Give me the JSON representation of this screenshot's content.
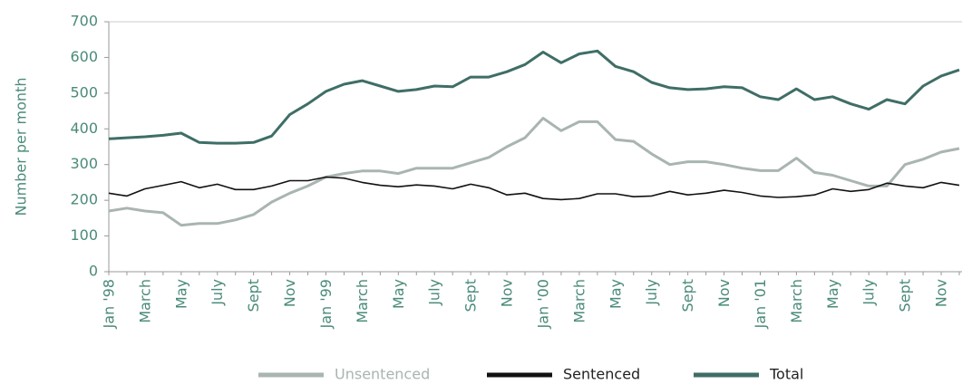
{
  "chart_data": {
    "type": "line",
    "y_label": "Number per month",
    "categories": [
      "Jan '98",
      null,
      "March",
      null,
      "May",
      null,
      "July",
      null,
      "Sept",
      null,
      "Nov",
      null,
      "Jan '99",
      null,
      "March",
      null,
      "May",
      null,
      "July",
      null,
      "Sept",
      null,
      "Nov",
      null,
      "Jan '00",
      null,
      "March",
      null,
      "May",
      null,
      "July",
      null,
      "Sept",
      null,
      "Nov",
      null,
      "Jan '01",
      null,
      "March",
      null,
      "May",
      null,
      "July",
      null,
      "Sept",
      null,
      "Nov",
      null
    ],
    "series": [
      {
        "name": "Unsentenced",
        "color": "#a9b5b0",
        "values": [
          170,
          178,
          170,
          165,
          130,
          135,
          135,
          145,
          160,
          195,
          220,
          240,
          265,
          275,
          282,
          282,
          275,
          290,
          290,
          290,
          305,
          320,
          350,
          375,
          430,
          395,
          420,
          420,
          370,
          365,
          330,
          300,
          308,
          308,
          300,
          290,
          283,
          283,
          318,
          278,
          270,
          255,
          240,
          240,
          300,
          315,
          335,
          345
        ]
      },
      {
        "name": "Sentenced",
        "color": "#111111",
        "values": [
          220,
          212,
          232,
          242,
          252,
          235,
          245,
          230,
          230,
          240,
          255,
          255,
          265,
          262,
          250,
          242,
          238,
          243,
          240,
          232,
          245,
          235,
          215,
          220,
          205,
          202,
          205,
          218,
          218,
          210,
          212,
          225,
          215,
          220,
          228,
          222,
          212,
          208,
          210,
          215,
          232,
          225,
          230,
          248,
          240,
          235,
          250,
          242
        ]
      },
      {
        "name": "Total",
        "color": "#3f6e66",
        "values": [
          372,
          375,
          378,
          382,
          388,
          362,
          360,
          360,
          362,
          380,
          440,
          470,
          505,
          525,
          535,
          520,
          505,
          510,
          520,
          518,
          545,
          545,
          560,
          580,
          615,
          585,
          610,
          618,
          575,
          560,
          530,
          515,
          510,
          512,
          518,
          515,
          490,
          482,
          512,
          482,
          490,
          470,
          455,
          482,
          470,
          520,
          548,
          565
        ]
      }
    ],
    "ylim": [
      0,
      700
    ],
    "yticks": [
      0,
      100,
      200,
      300,
      400,
      500,
      600,
      700
    ]
  }
}
